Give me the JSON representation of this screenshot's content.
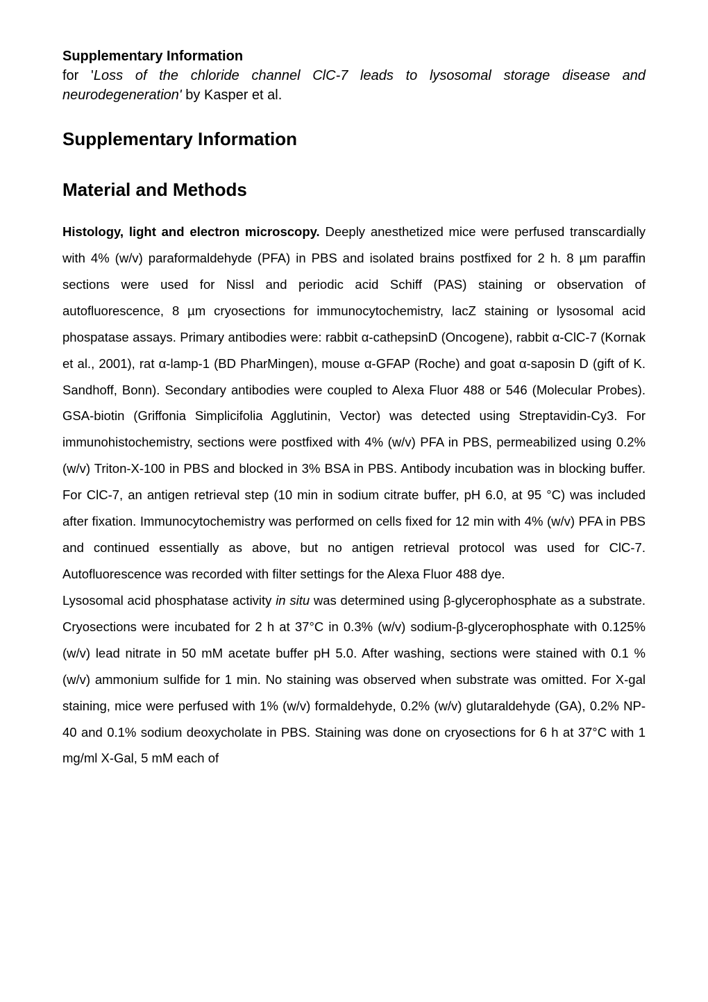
{
  "header": {
    "title": "Supplementary Information",
    "subtitle_prefix": "for '",
    "subtitle_italic": "Loss of the chloride channel ClC-7 leads to lysosomal storage disease and neurodegeneration'",
    "subtitle_suffix": " by Kasper et al."
  },
  "heading1": "Supplementary Information",
  "heading2": "Material and Methods",
  "para1": {
    "bold_lead": "Histology, light and electron microscopy.",
    "text1": " Deeply anesthetized mice were perfused transcardially with 4% (w/v) paraformaldehyde (PFA) in PBS and isolated brains postfixed for 2 h. 8 µm paraffin sections were used for Nissl and periodic acid Schiff (PAS) staining or observation of autofluorescence, 8 µm cryosections for immunocytochemistry, lacZ staining or lysosomal acid phospatase assays. Primary antibodies were: rabbit α-cathepsinD (Oncogene), rabbit α-ClC-7 (Kornak et al., 2001), rat α-lamp-1 (BD PharMingen), mouse α-GFAP (Roche) and goat α-saposin D (gift of K. Sandhoff, Bonn). Secondary antibodies were coupled to Alexa Fluor 488 or 546 (Molecular Probes). GSA-biotin (Griffonia Simplicifolia Agglutinin, Vector) was detected using Streptavidin-Cy3. For immunohistochemistry, sections were postfixed with 4% (w/v) PFA in PBS, permeabilized using 0.2% (w/v) Triton-X-100 in PBS and blocked in 3% BSA in PBS. Antibody incubation was in blocking buffer. For ClC-7, an antigen retrieval step (10 min in sodium citrate buffer, pH 6.0, at 95 °C) was included after fixation. Immunocytochemistry was performed on cells fixed for 12 min with 4% (w/v) PFA in PBS and continued essentially as above, but no antigen retrieval protocol was used for ClC-7. Autofluorescence was recorded with filter settings for the Alexa Fluor 488 dye."
  },
  "para2": {
    "text_a": "Lysosomal acid phosphatase activity ",
    "italic_a": "in situ",
    "text_b": " was determined using β-glycerophosphate as a substrate. Cryosections were incubated for 2 h at 37°C in 0.3% (w/v) sodium-β-glycerophosphate with 0.125% (w/v) lead nitrate in 50 mM acetate buffer pH 5.0. After washing, sections were stained with 0.1 % (w/v) ammonium sulfide for 1 min. No staining was observed when substrate was omitted. For X-gal staining, mice were perfused with 1% (w/v) formaldehyde, 0.2% (w/v) glutaraldehyde (GA), 0.2% NP-40 and 0.1% sodium deoxycholate in PBS. Staining was done on cryosections for 6 h at 37°C with 1 mg/ml X-Gal, 5 mM each of"
  },
  "style": {
    "background_color": "#ffffff",
    "text_color": "#000000",
    "header_title_fontsize": 20,
    "header_subtitle_fontsize": 20,
    "section_heading_fontsize": 26,
    "body_fontsize": 18.5,
    "body_line_height": 2.05,
    "font_family": "Arial"
  }
}
